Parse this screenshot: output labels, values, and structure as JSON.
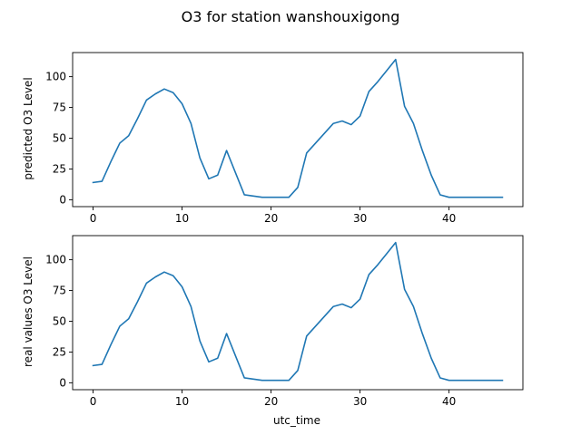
{
  "figure": {
    "title": "O3 for station wanshouxigong",
    "line_color": "#1f77b4"
  },
  "chart_data": [
    {
      "type": "line",
      "title": "",
      "xlabel": "",
      "ylabel": "predicted O3 Level",
      "xlim": [
        -2.3,
        48.3
      ],
      "ylim": [
        -5.6,
        119.6
      ],
      "xticks": [
        0,
        10,
        20,
        30,
        40
      ],
      "yticks": [
        0,
        25,
        50,
        75,
        100
      ],
      "grid": false,
      "x": [
        0,
        1,
        2,
        3,
        4,
        5,
        6,
        7,
        8,
        9,
        10,
        11,
        12,
        13,
        14,
        15,
        16,
        17,
        18,
        19,
        20,
        21,
        22,
        23,
        24,
        25,
        26,
        27,
        28,
        29,
        30,
        31,
        32,
        33,
        34,
        35,
        36,
        37,
        38,
        39,
        40,
        41,
        42,
        43,
        44,
        45,
        46
      ],
      "series": [
        {
          "values": [
            14,
            15,
            31,
            46,
            52,
            66,
            81,
            86,
            90,
            87,
            78,
            62,
            34,
            17,
            20,
            40,
            22,
            4,
            3,
            2,
            2,
            2,
            2,
            10,
            38,
            46,
            54,
            62,
            64,
            61,
            68,
            88,
            96,
            105,
            114,
            76,
            62,
            40,
            20,
            4,
            2,
            2,
            2,
            2,
            2,
            2,
            2
          ]
        }
      ]
    },
    {
      "type": "line",
      "title": "",
      "xlabel": "utc_time",
      "ylabel": "real values O3 Level",
      "xlim": [
        -2.3,
        48.3
      ],
      "ylim": [
        -5.6,
        119.6
      ],
      "xticks": [
        0,
        10,
        20,
        30,
        40
      ],
      "yticks": [
        0,
        25,
        50,
        75,
        100
      ],
      "grid": false,
      "x": [
        0,
        1,
        2,
        3,
        4,
        5,
        6,
        7,
        8,
        9,
        10,
        11,
        12,
        13,
        14,
        15,
        16,
        17,
        18,
        19,
        20,
        21,
        22,
        23,
        24,
        25,
        26,
        27,
        28,
        29,
        30,
        31,
        32,
        33,
        34,
        35,
        36,
        37,
        38,
        39,
        40,
        41,
        42,
        43,
        44,
        45,
        46
      ],
      "series": [
        {
          "values": [
            14,
            15,
            31,
            46,
            52,
            66,
            81,
            86,
            90,
            87,
            78,
            62,
            34,
            17,
            20,
            40,
            22,
            4,
            3,
            2,
            2,
            2,
            2,
            10,
            38,
            46,
            54,
            62,
            64,
            61,
            68,
            88,
            96,
            105,
            114,
            76,
            62,
            40,
            20,
            4,
            2,
            2,
            2,
            2,
            2,
            2,
            2
          ]
        }
      ]
    }
  ]
}
